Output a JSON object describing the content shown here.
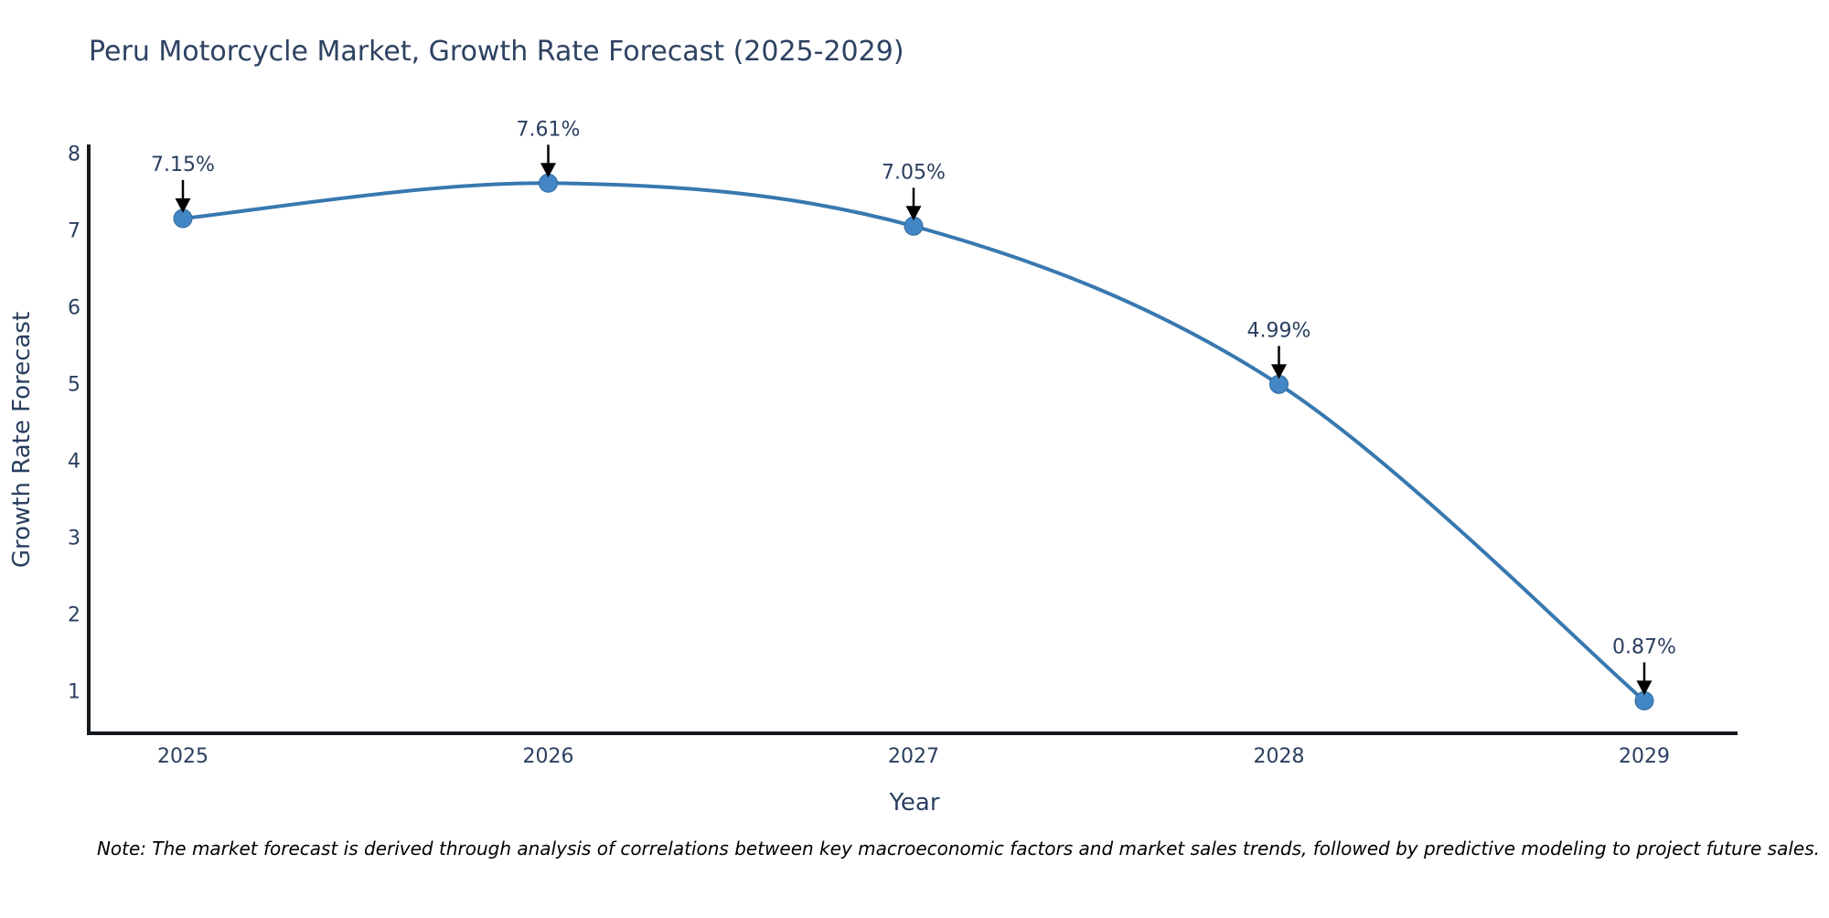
{
  "chart_data": {
    "type": "line",
    "title": "Peru Motorcycle Market, Growth Rate Forecast (2025-2029)",
    "xlabel": "Year",
    "ylabel": "Growth Rate Forecast",
    "categories": [
      "2025",
      "2026",
      "2027",
      "2028",
      "2029"
    ],
    "series": [
      {
        "name": "Growth Rate Forecast",
        "values": [
          7.15,
          7.61,
          7.05,
          4.99,
          0.87
        ],
        "point_labels": [
          "7.15%",
          "7.61%",
          "7.05%",
          "4.99%",
          "0.87%"
        ]
      }
    ],
    "yticks": [
      1,
      2,
      3,
      4,
      5,
      6,
      7,
      8
    ],
    "ylim": [
      0.45,
      8.1
    ],
    "grid": false,
    "legend_position": "none",
    "line_shape": "spline",
    "annotations_have_arrows": true,
    "note": "Note: The market forecast is derived through analysis of correlations between key macroeconomic factors and market sales trends, followed by predictive modeling to project future sales.",
    "colors": {
      "line": "#3878b0",
      "marker": "#4286c5",
      "marker_edge": "#326b9e",
      "text": "#2a3f5f",
      "title_text": "#2e4262",
      "axis_line": "#16191d",
      "arrow": "#000000",
      "note_text": "#000000",
      "background": "#ffffff"
    }
  }
}
